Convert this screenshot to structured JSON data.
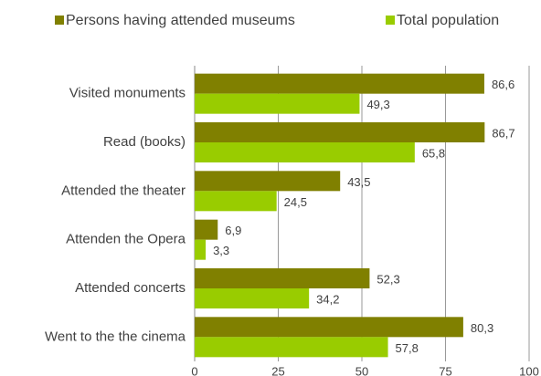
{
  "chart_data": {
    "type": "bar",
    "orientation": "horizontal",
    "categories": [
      "Visited monuments",
      "Read (books)",
      "Attended the theater",
      "Attenden the Opera",
      "Attended concerts",
      "Went to the the cinema"
    ],
    "series": [
      {
        "name": "Persons having attended museums",
        "color": "#808000",
        "values": [
          86.6,
          86.7,
          43.5,
          6.9,
          52.3,
          80.3
        ],
        "value_labels": [
          "86,6",
          "86,7",
          "43,5",
          "6,9",
          "52,3",
          "80,3"
        ]
      },
      {
        "name": "Total population",
        "color": "#99cc00",
        "values": [
          49.3,
          65.8,
          24.5,
          3.3,
          34.2,
          57.8
        ],
        "value_labels": [
          "49,3",
          "65,8",
          "24,5",
          "3,3",
          "34,2",
          "57,8"
        ]
      }
    ],
    "xlim": [
      0,
      100
    ],
    "xticks": [
      0,
      25,
      50,
      75,
      100
    ],
    "grid": true,
    "legend": "top"
  }
}
